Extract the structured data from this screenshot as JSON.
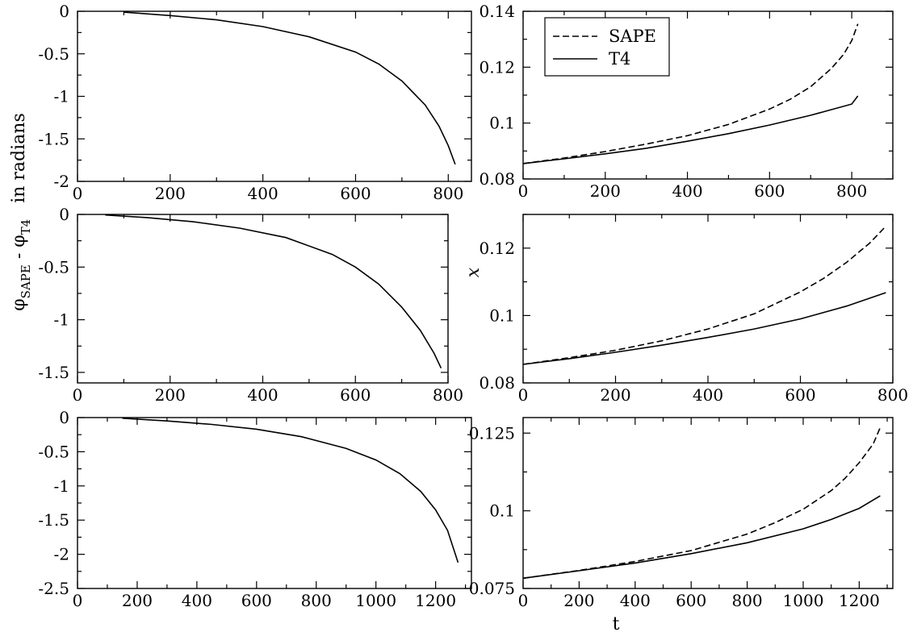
{
  "figure": {
    "ylabel": {
      "phi": "φ",
      "sub1": "SAPE",
      "minus": " - φ",
      "sub2": "T4",
      "rest": "in radians"
    },
    "ylabel_right": "x",
    "xlabel": "t"
  },
  "chart_data": [
    {
      "type": "line",
      "panel": "row1-left",
      "xlim": [
        0,
        850
      ],
      "ylim": [
        -2,
        0
      ],
      "xticks": [
        0,
        200,
        400,
        600,
        800
      ],
      "xtick_labels": [
        "0",
        "200",
        "400",
        "600",
        "800"
      ],
      "yticks": [
        -2,
        -1.5,
        -1,
        -0.5,
        0
      ],
      "ytick_labels": [
        "-2",
        "-1.5",
        "-1",
        "-0.5",
        "0"
      ],
      "series": [
        {
          "style": "solid",
          "x": [
            100,
            200,
            300,
            400,
            500,
            600,
            650,
            700,
            750,
            780,
            800,
            815
          ],
          "y": [
            -0.01,
            -0.05,
            -0.1,
            -0.18,
            -0.3,
            -0.48,
            -0.62,
            -0.82,
            -1.1,
            -1.35,
            -1.58,
            -1.8
          ]
        }
      ]
    },
    {
      "type": "line",
      "panel": "row1-right",
      "xlim": [
        0,
        900
      ],
      "ylim": [
        0.08,
        0.14
      ],
      "xticks": [
        0,
        200,
        400,
        600,
        800
      ],
      "xtick_labels": [
        "0",
        "200",
        "400",
        "600",
        "800"
      ],
      "yticks": [
        0.08,
        0.1,
        0.12,
        0.14
      ],
      "ytick_labels": [
        "0.08",
        "0.1",
        "0.12",
        "0.14"
      ],
      "legend": {
        "position": "top-left",
        "entries": [
          {
            "label": "SAPE",
            "style": "dashed"
          },
          {
            "label": "T4",
            "style": "solid"
          }
        ]
      },
      "series": [
        {
          "name": "SAPE",
          "style": "dashed",
          "x": [
            0,
            100,
            200,
            300,
            400,
            500,
            600,
            650,
            700,
            750,
            780,
            800,
            815
          ],
          "y": [
            0.0855,
            0.0875,
            0.0898,
            0.0925,
            0.0955,
            0.0995,
            0.105,
            0.1085,
            0.113,
            0.1195,
            0.1245,
            0.1295,
            0.1355
          ]
        },
        {
          "name": "T4",
          "style": "solid",
          "x": [
            0,
            100,
            200,
            300,
            400,
            500,
            600,
            700,
            800,
            815
          ],
          "y": [
            0.0855,
            0.0872,
            0.089,
            0.091,
            0.0935,
            0.0962,
            0.0993,
            0.1028,
            0.1068,
            0.1097
          ]
        }
      ]
    },
    {
      "type": "line",
      "panel": "row2-left",
      "xlim": [
        0,
        800
      ],
      "ylim": [
        -1.6,
        0
      ],
      "xticks": [
        0,
        200,
        400,
        600,
        800
      ],
      "xtick_labels": [
        "0",
        "200",
        "400",
        "600",
        "800"
      ],
      "yticks": [
        -1.5,
        -1,
        -0.5,
        0
      ],
      "ytick_labels": [
        "-1.5",
        "-1",
        "-0.5",
        "0"
      ],
      "series": [
        {
          "style": "solid",
          "x": [
            60,
            150,
            250,
            350,
            450,
            550,
            600,
            650,
            700,
            740,
            770,
            785
          ],
          "y": [
            -0.005,
            -0.03,
            -0.07,
            -0.13,
            -0.22,
            -0.38,
            -0.5,
            -0.66,
            -0.88,
            -1.1,
            -1.32,
            -1.46
          ]
        }
      ]
    },
    {
      "type": "line",
      "panel": "row2-right",
      "xlim": [
        0,
        800
      ],
      "ylim": [
        0.08,
        0.13
      ],
      "xticks": [
        0,
        200,
        400,
        600,
        800
      ],
      "xtick_labels": [
        "0",
        "200",
        "400",
        "600",
        "800"
      ],
      "yticks": [
        0.08,
        0.1,
        0.12
      ],
      "ytick_labels": [
        "0.08",
        "0.1",
        "0.12"
      ],
      "series": [
        {
          "name": "SAPE",
          "style": "dashed",
          "x": [
            0,
            100,
            200,
            300,
            400,
            500,
            600,
            650,
            700,
            750,
            785
          ],
          "y": [
            0.0855,
            0.0875,
            0.0897,
            0.0925,
            0.096,
            0.1005,
            0.107,
            0.111,
            0.1158,
            0.1215,
            0.1265
          ]
        },
        {
          "name": "T4",
          "style": "solid",
          "x": [
            0,
            100,
            200,
            300,
            400,
            500,
            600,
            700,
            785
          ],
          "y": [
            0.0855,
            0.0872,
            0.0891,
            0.0912,
            0.0935,
            0.096,
            0.099,
            0.1028,
            0.1068
          ]
        }
      ]
    },
    {
      "type": "line",
      "panel": "row3-left",
      "xlim": [
        0,
        1320
      ],
      "ylim": [
        -2.5,
        0
      ],
      "xticks": [
        0,
        200,
        400,
        600,
        800,
        1000,
        1200
      ],
      "xtick_labels": [
        "0",
        "200",
        "400",
        "600",
        "800",
        "1000",
        "1200"
      ],
      "yticks": [
        -2.5,
        -2,
        -1.5,
        -1,
        -0.5,
        0
      ],
      "ytick_labels": [
        "-2.5",
        "-2",
        "-1.5",
        "-1",
        "-0.5",
        "0"
      ],
      "series": [
        {
          "style": "solid",
          "x": [
            150,
            300,
            450,
            600,
            750,
            900,
            1000,
            1080,
            1150,
            1200,
            1240,
            1275
          ],
          "y": [
            -0.01,
            -0.05,
            -0.1,
            -0.17,
            -0.28,
            -0.45,
            -0.62,
            -0.82,
            -1.08,
            -1.35,
            -1.65,
            -2.12
          ]
        }
      ]
    },
    {
      "type": "line",
      "panel": "row3-right",
      "xlim": [
        0,
        1320
      ],
      "ylim": [
        0.075,
        0.13
      ],
      "xticks": [
        0,
        200,
        400,
        600,
        800,
        1000,
        1200
      ],
      "xtick_labels": [
        "0",
        "200",
        "400",
        "600",
        "800",
        "1000",
        "1200"
      ],
      "yticks": [
        0.075,
        0.1,
        0.125
      ],
      "ytick_labels": [
        "0.075",
        "0.1",
        "0.125"
      ],
      "series": [
        {
          "name": "SAPE",
          "style": "dashed",
          "x": [
            0,
            200,
            400,
            600,
            800,
            900,
            1000,
            1100,
            1150,
            1200,
            1250,
            1275
          ],
          "y": [
            0.0783,
            0.0808,
            0.0837,
            0.0872,
            0.0925,
            0.0962,
            0.1005,
            0.1065,
            0.1105,
            0.1155,
            0.1215,
            0.1268
          ]
        },
        {
          "name": "T4",
          "style": "solid",
          "x": [
            0,
            200,
            400,
            600,
            800,
            1000,
            1100,
            1200,
            1275
          ],
          "y": [
            0.0783,
            0.0807,
            0.0832,
            0.0862,
            0.0897,
            0.0942,
            0.0972,
            0.1008,
            0.1048
          ]
        }
      ]
    }
  ]
}
